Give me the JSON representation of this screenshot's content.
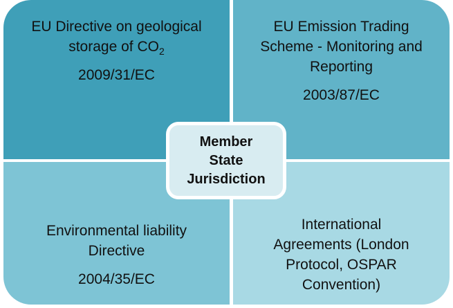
{
  "quadrants": [
    {
      "title": "EU Directive on geological storage of",
      "formula": {
        "base": "CO",
        "subscript": "2"
      },
      "code": "2009/31/EC"
    },
    {
      "title": "EU Emission Trading Scheme - Monitoring and Reporting",
      "code": "2003/87/EC"
    },
    {
      "title": "Environmental liability Directive",
      "code": "2004/35/EC"
    },
    {
      "title": "International Agreements (London Protocol, OSPAR Convention)"
    }
  ],
  "center": {
    "label": "Member State Jurisdiction"
  }
}
